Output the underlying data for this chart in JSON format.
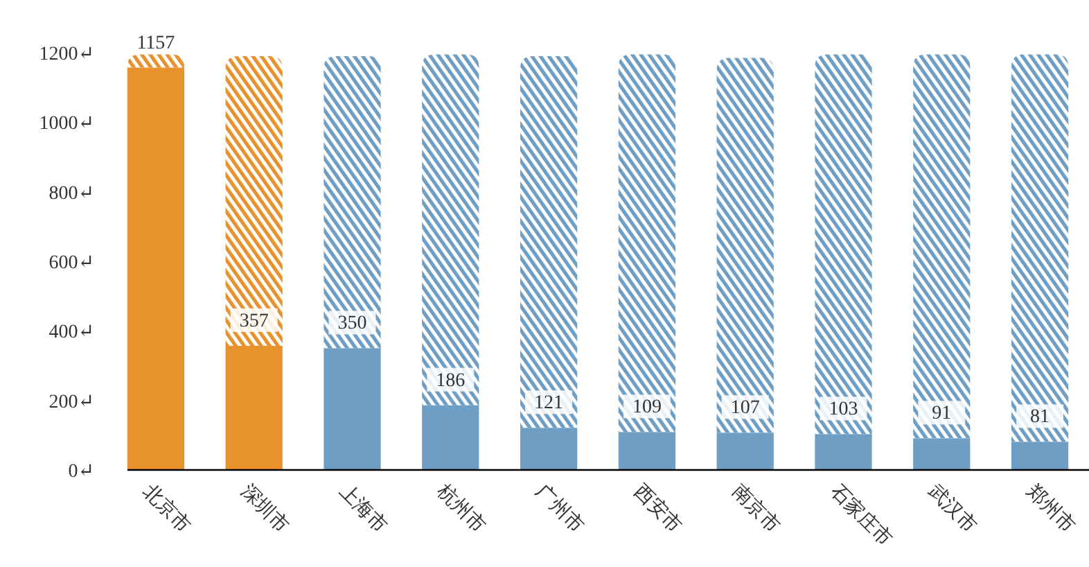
{
  "chart_data": {
    "type": "bar",
    "stacked": true,
    "categories": [
      "北京市",
      "深圳市",
      "上海市",
      "杭州市",
      "广州市",
      "西安市",
      "南京市",
      "石家庄市",
      "武汉市",
      "郑州市"
    ],
    "series": [
      {
        "colors": [
          "#e8922e",
          "#e8922e",
          "#6f9ec4",
          "#6f9ec4",
          "#6f9ec4",
          "#6f9ec4",
          "#6f9ec4",
          "#6f9ec4",
          "#6f9ec4",
          "#6f9ec4"
        ],
        "values": [
          1157,
          357,
          350,
          186,
          121,
          109,
          107,
          103,
          91,
          81
        ],
        "data_labels": true
      },
      {
        "colors": [
          "#e8922e",
          "#e8922e",
          "#6f9ec4",
          "#6f9ec4",
          "#6f9ec4",
          "#6f9ec4",
          "#6f9ec4",
          "#6f9ec4",
          "#6f9ec4",
          "#6f9ec4"
        ],
        "values": [
          38,
          833,
          840,
          1009,
          1069,
          1086,
          1078,
          1092,
          1104,
          1114
        ]
      }
    ],
    "ylim": [
      0,
      1200
    ],
    "yticks": [
      {
        "value": 0,
        "label": "0↵"
      },
      {
        "value": 200,
        "label": "200↵"
      },
      {
        "value": 400,
        "label": "400↵"
      },
      {
        "value": 600,
        "label": "600↵"
      },
      {
        "value": 800,
        "label": "800↵"
      },
      {
        "value": 1000,
        "label": "1000↵"
      },
      {
        "value": 1200,
        "label": "1200↵"
      }
    ],
    "grid": false
  }
}
